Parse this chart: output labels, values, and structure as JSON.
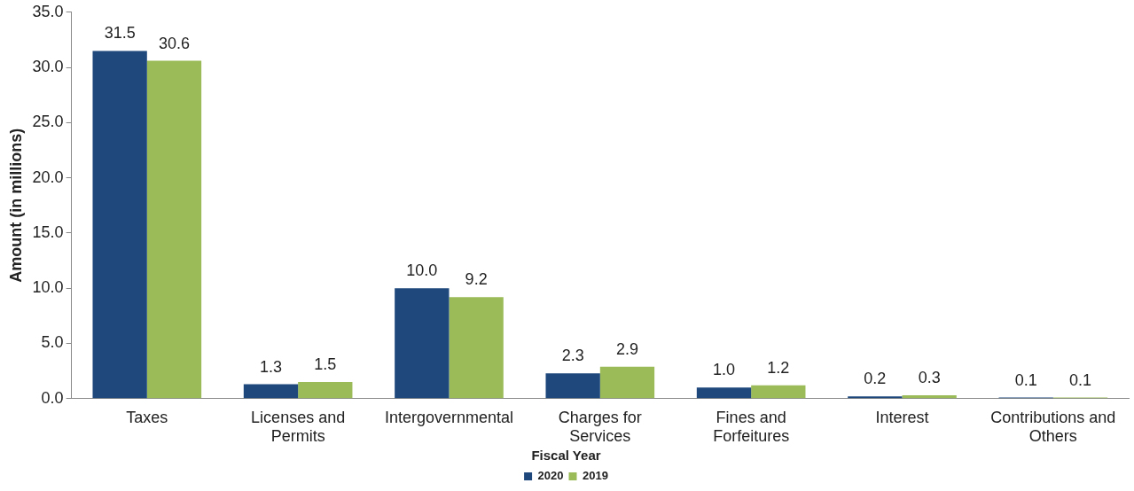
{
  "chart_data": {
    "type": "bar",
    "ylabel": "Amount (in millions)",
    "legend_title": "Fiscal Year",
    "categories": [
      "Taxes",
      "Licenses and Permits",
      "Intergovernmental",
      "Charges for Services",
      "Fines and Forfeitures",
      "Interest",
      "Contributions and Others"
    ],
    "series": [
      {
        "name": "2020",
        "color": "#1f497d",
        "values": [
          31.5,
          1.3,
          10.0,
          2.3,
          1.0,
          0.2,
          0.1
        ],
        "value_labels": [
          "31.5",
          "1.3",
          "10.0",
          "2.3",
          "1.0",
          "0.2",
          "0.1"
        ]
      },
      {
        "name": "2019",
        "color": "#9bbb59",
        "values": [
          30.6,
          1.5,
          9.2,
          2.9,
          1.2,
          0.3,
          0.1
        ],
        "value_labels": [
          "30.6",
          "1.5",
          "9.2",
          "2.9",
          "1.2",
          "0.3",
          "0.1"
        ]
      }
    ],
    "ylim": [
      0,
      35
    ],
    "yticks": [
      {
        "value": 0,
        "label": "0.0"
      },
      {
        "value": 5,
        "label": "5.0"
      },
      {
        "value": 10,
        "label": "10.0"
      },
      {
        "value": 15,
        "label": "15.0"
      },
      {
        "value": 20,
        "label": "20.0"
      },
      {
        "value": 25,
        "label": "25.0"
      },
      {
        "value": 30,
        "label": "30.0"
      },
      {
        "value": 35,
        "label": "35.0"
      }
    ],
    "grid": false,
    "legend": "bottom"
  }
}
